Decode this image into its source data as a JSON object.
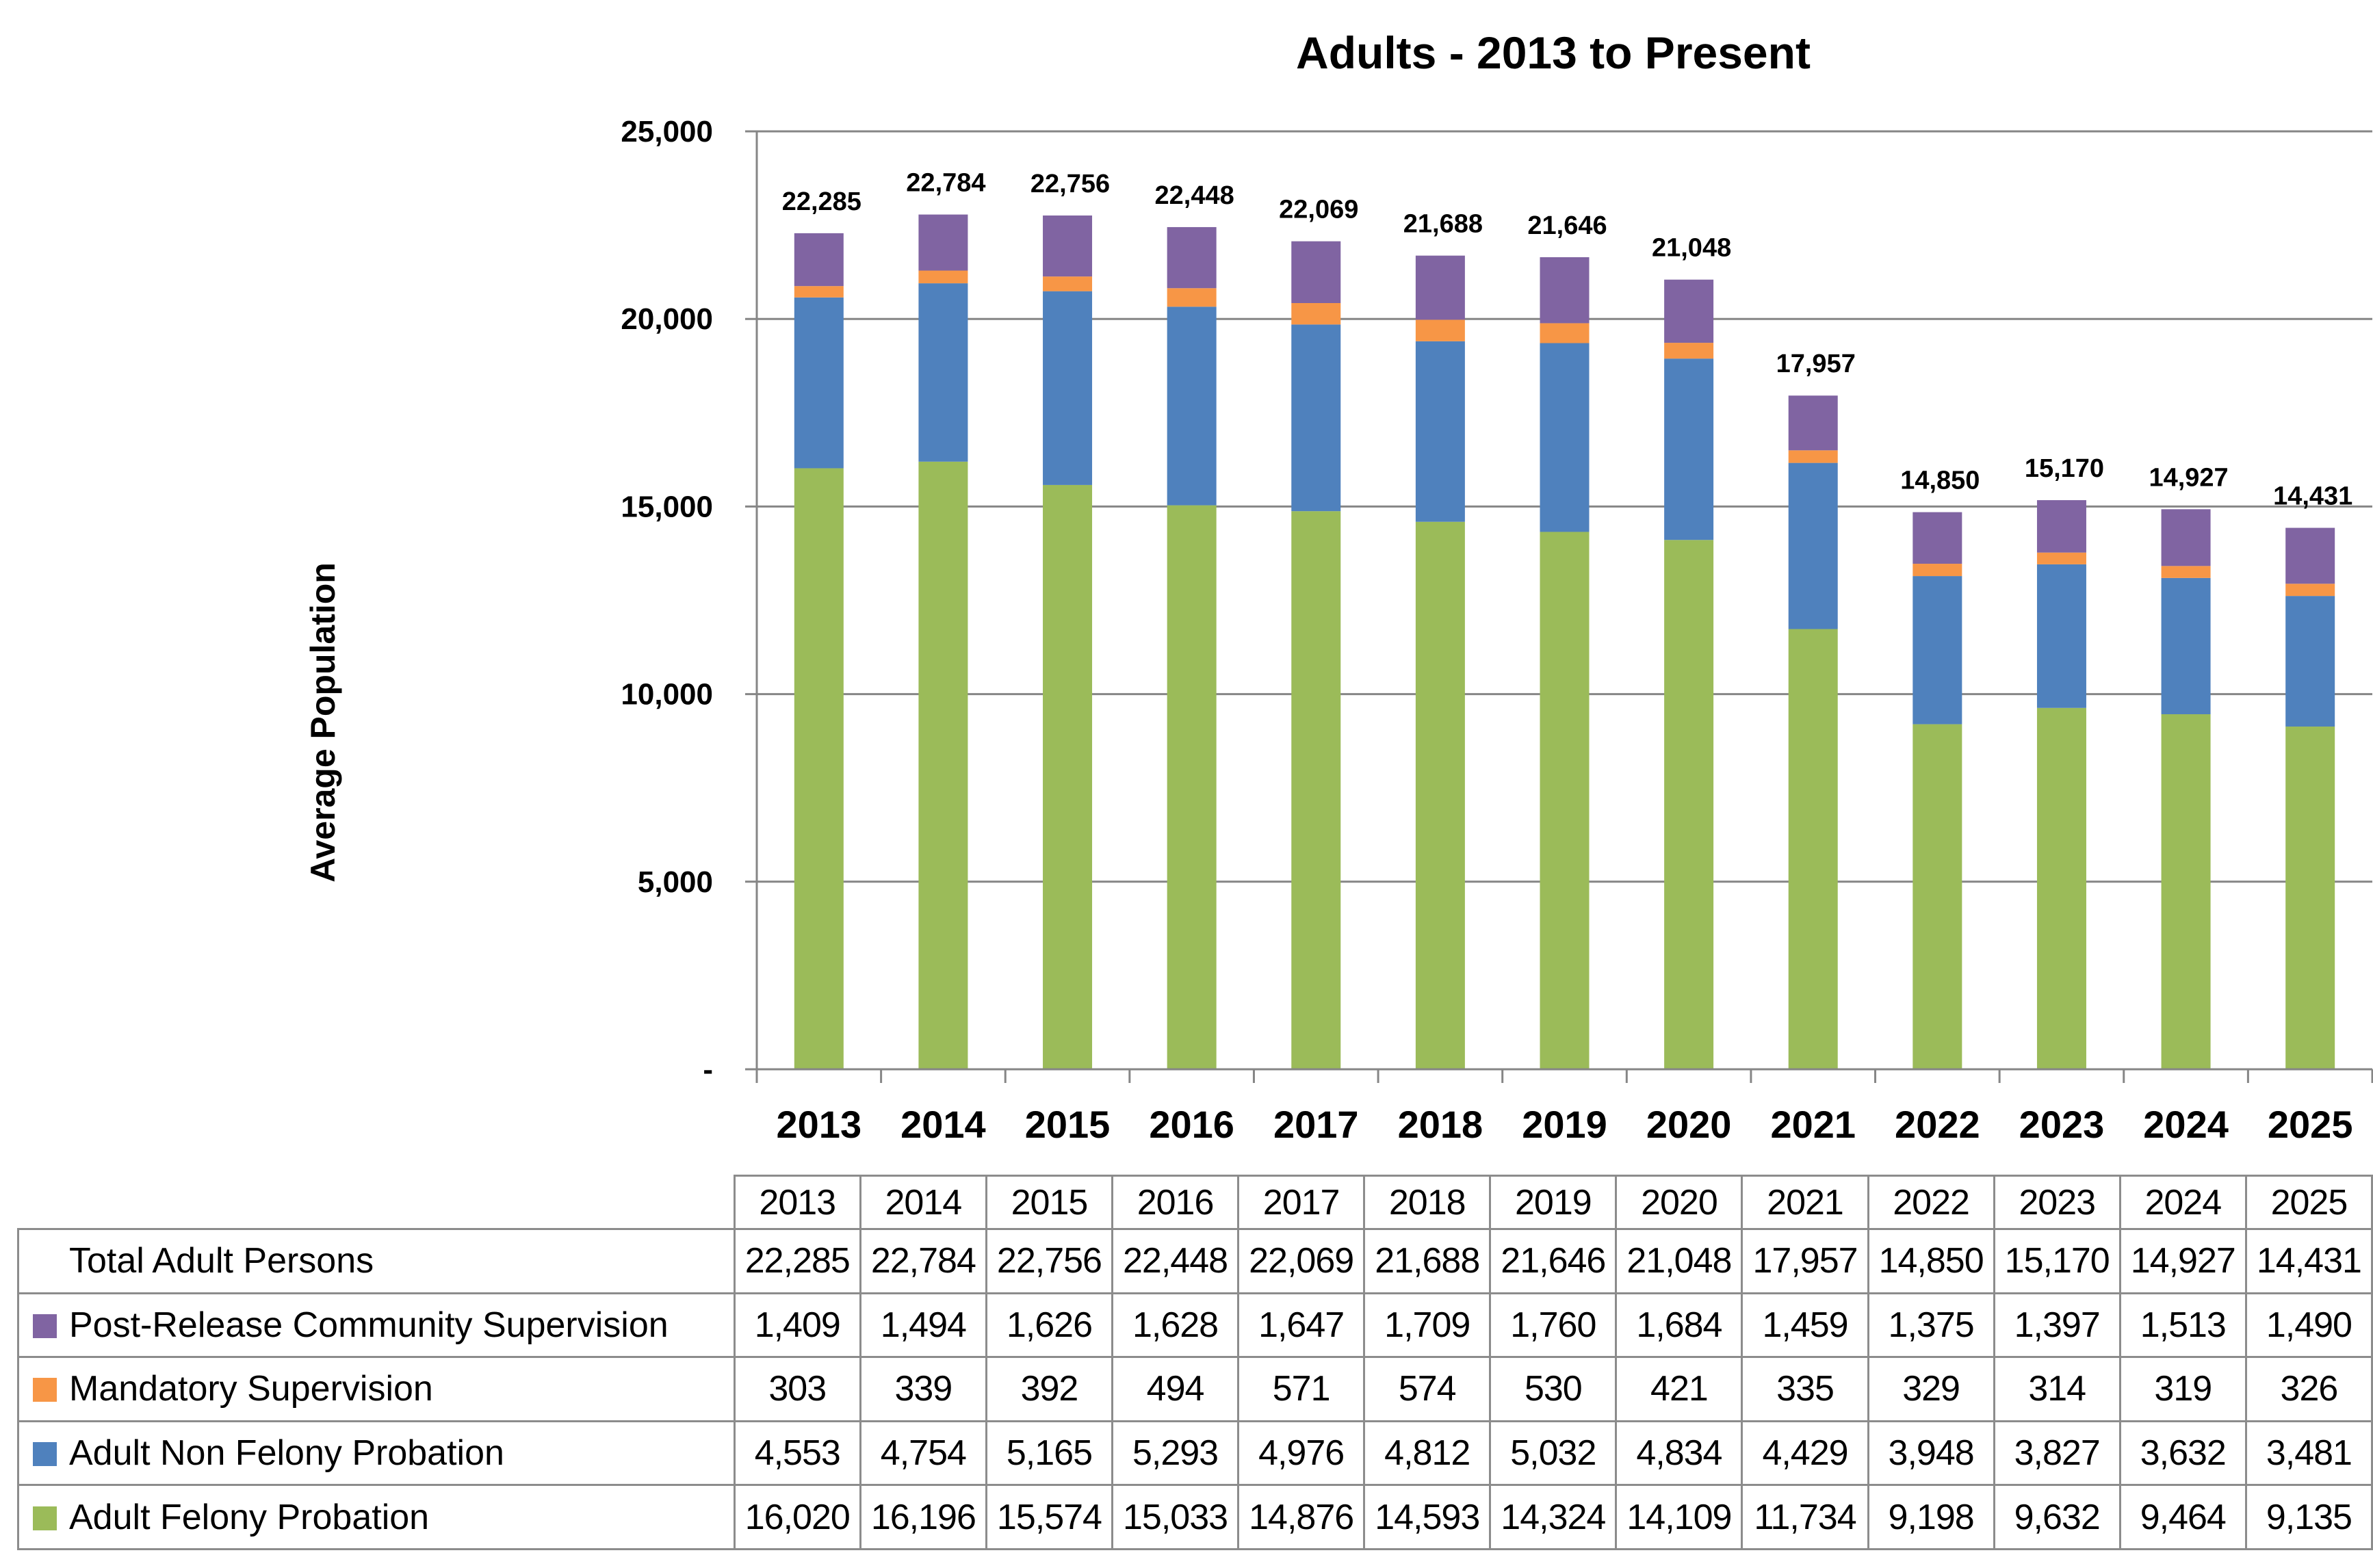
{
  "chart_data": {
    "type": "bar",
    "stacked": true,
    "title": "Adults - 2013 to Present",
    "xlabel": "",
    "ylabel": "Average Population",
    "ylim": [
      0,
      25000
    ],
    "yticks": [
      0,
      5000,
      10000,
      15000,
      20000,
      25000
    ],
    "ytick_labels": [
      "-",
      "5,000",
      "10,000",
      "15,000",
      "20,000",
      "25,000"
    ],
    "grid": true,
    "legend": "table-below",
    "categories": [
      "2013",
      "2014",
      "2015",
      "2016",
      "2017",
      "2018",
      "2019",
      "2020",
      "2021",
      "2022",
      "2023",
      "2024",
      "2025"
    ],
    "series": [
      {
        "name": "Adult Felony Probation",
        "color": "#9BBB59",
        "values": [
          16020,
          16196,
          15574,
          15033,
          14876,
          14593,
          14324,
          14109,
          11734,
          9198,
          9632,
          9464,
          9135
        ]
      },
      {
        "name": "Adult Non Felony Probation",
        "color": "#4F81BD",
        "values": [
          4553,
          4754,
          5165,
          5293,
          4976,
          4812,
          5032,
          4834,
          4429,
          3948,
          3827,
          3632,
          3481
        ]
      },
      {
        "name": "Mandatory Supervision",
        "color": "#F79646",
        "values": [
          303,
          339,
          392,
          494,
          571,
          574,
          530,
          421,
          335,
          329,
          314,
          319,
          326
        ]
      },
      {
        "name": "Post-Release Community Supervision",
        "color": "#8064A2",
        "values": [
          1409,
          1494,
          1626,
          1628,
          1647,
          1709,
          1760,
          1684,
          1459,
          1375,
          1397,
          1513,
          1490
        ]
      }
    ],
    "totals": {
      "name": "Total Adult Persons",
      "values": [
        22285,
        22784,
        22756,
        22448,
        22069,
        21688,
        21646,
        21048,
        17957,
        14850,
        15170,
        14927,
        14431
      ],
      "labels": [
        "22,285",
        "22,784",
        "22,756",
        "22,448",
        "22,069",
        "21,688",
        "21,646",
        "21,048",
        "17,957",
        "14,850",
        "15,170",
        "14,927",
        "14,431"
      ]
    }
  },
  "table": {
    "header": [
      "2013",
      "2014",
      "2015",
      "2016",
      "2017",
      "2018",
      "2019",
      "2020",
      "2021",
      "2022",
      "2023",
      "2024",
      "2025"
    ],
    "rows": [
      {
        "label": "Total Adult Persons",
        "swatch": "",
        "cells": [
          "22,285",
          "22,784",
          "22,756",
          "22,448",
          "22,069",
          "21,688",
          "21,646",
          "21,048",
          "17,957",
          "14,850",
          "15,170",
          "14,927",
          "14,431"
        ]
      },
      {
        "label": "Post-Release Community Supervision",
        "swatch": "#8064A2",
        "cells": [
          "1,409",
          "1,494",
          "1,626",
          "1,628",
          "1,647",
          "1,709",
          "1,760",
          "1,684",
          "1,459",
          "1,375",
          "1,397",
          "1,513",
          "1,490"
        ]
      },
      {
        "label": "Mandatory Supervision",
        "swatch": "#F79646",
        "cells": [
          "303",
          "339",
          "392",
          "494",
          "571",
          "574",
          "530",
          "421",
          "335",
          "329",
          "314",
          "319",
          "326"
        ]
      },
      {
        "label": "Adult Non Felony Probation",
        "swatch": "#4F81BD",
        "cells": [
          "4,553",
          "4,754",
          "5,165",
          "5,293",
          "4,976",
          "4,812",
          "5,032",
          "4,834",
          "4,429",
          "3,948",
          "3,827",
          "3,632",
          "3,481"
        ]
      },
      {
        "label": "Adult Felony Probation",
        "swatch": "#9BBB59",
        "cells": [
          "16,020",
          "16,196",
          "15,574",
          "15,033",
          "14,876",
          "14,593",
          "14,324",
          "14,109",
          "11,734",
          "9,198",
          "9,632",
          "9,464",
          "9,135"
        ]
      }
    ]
  }
}
